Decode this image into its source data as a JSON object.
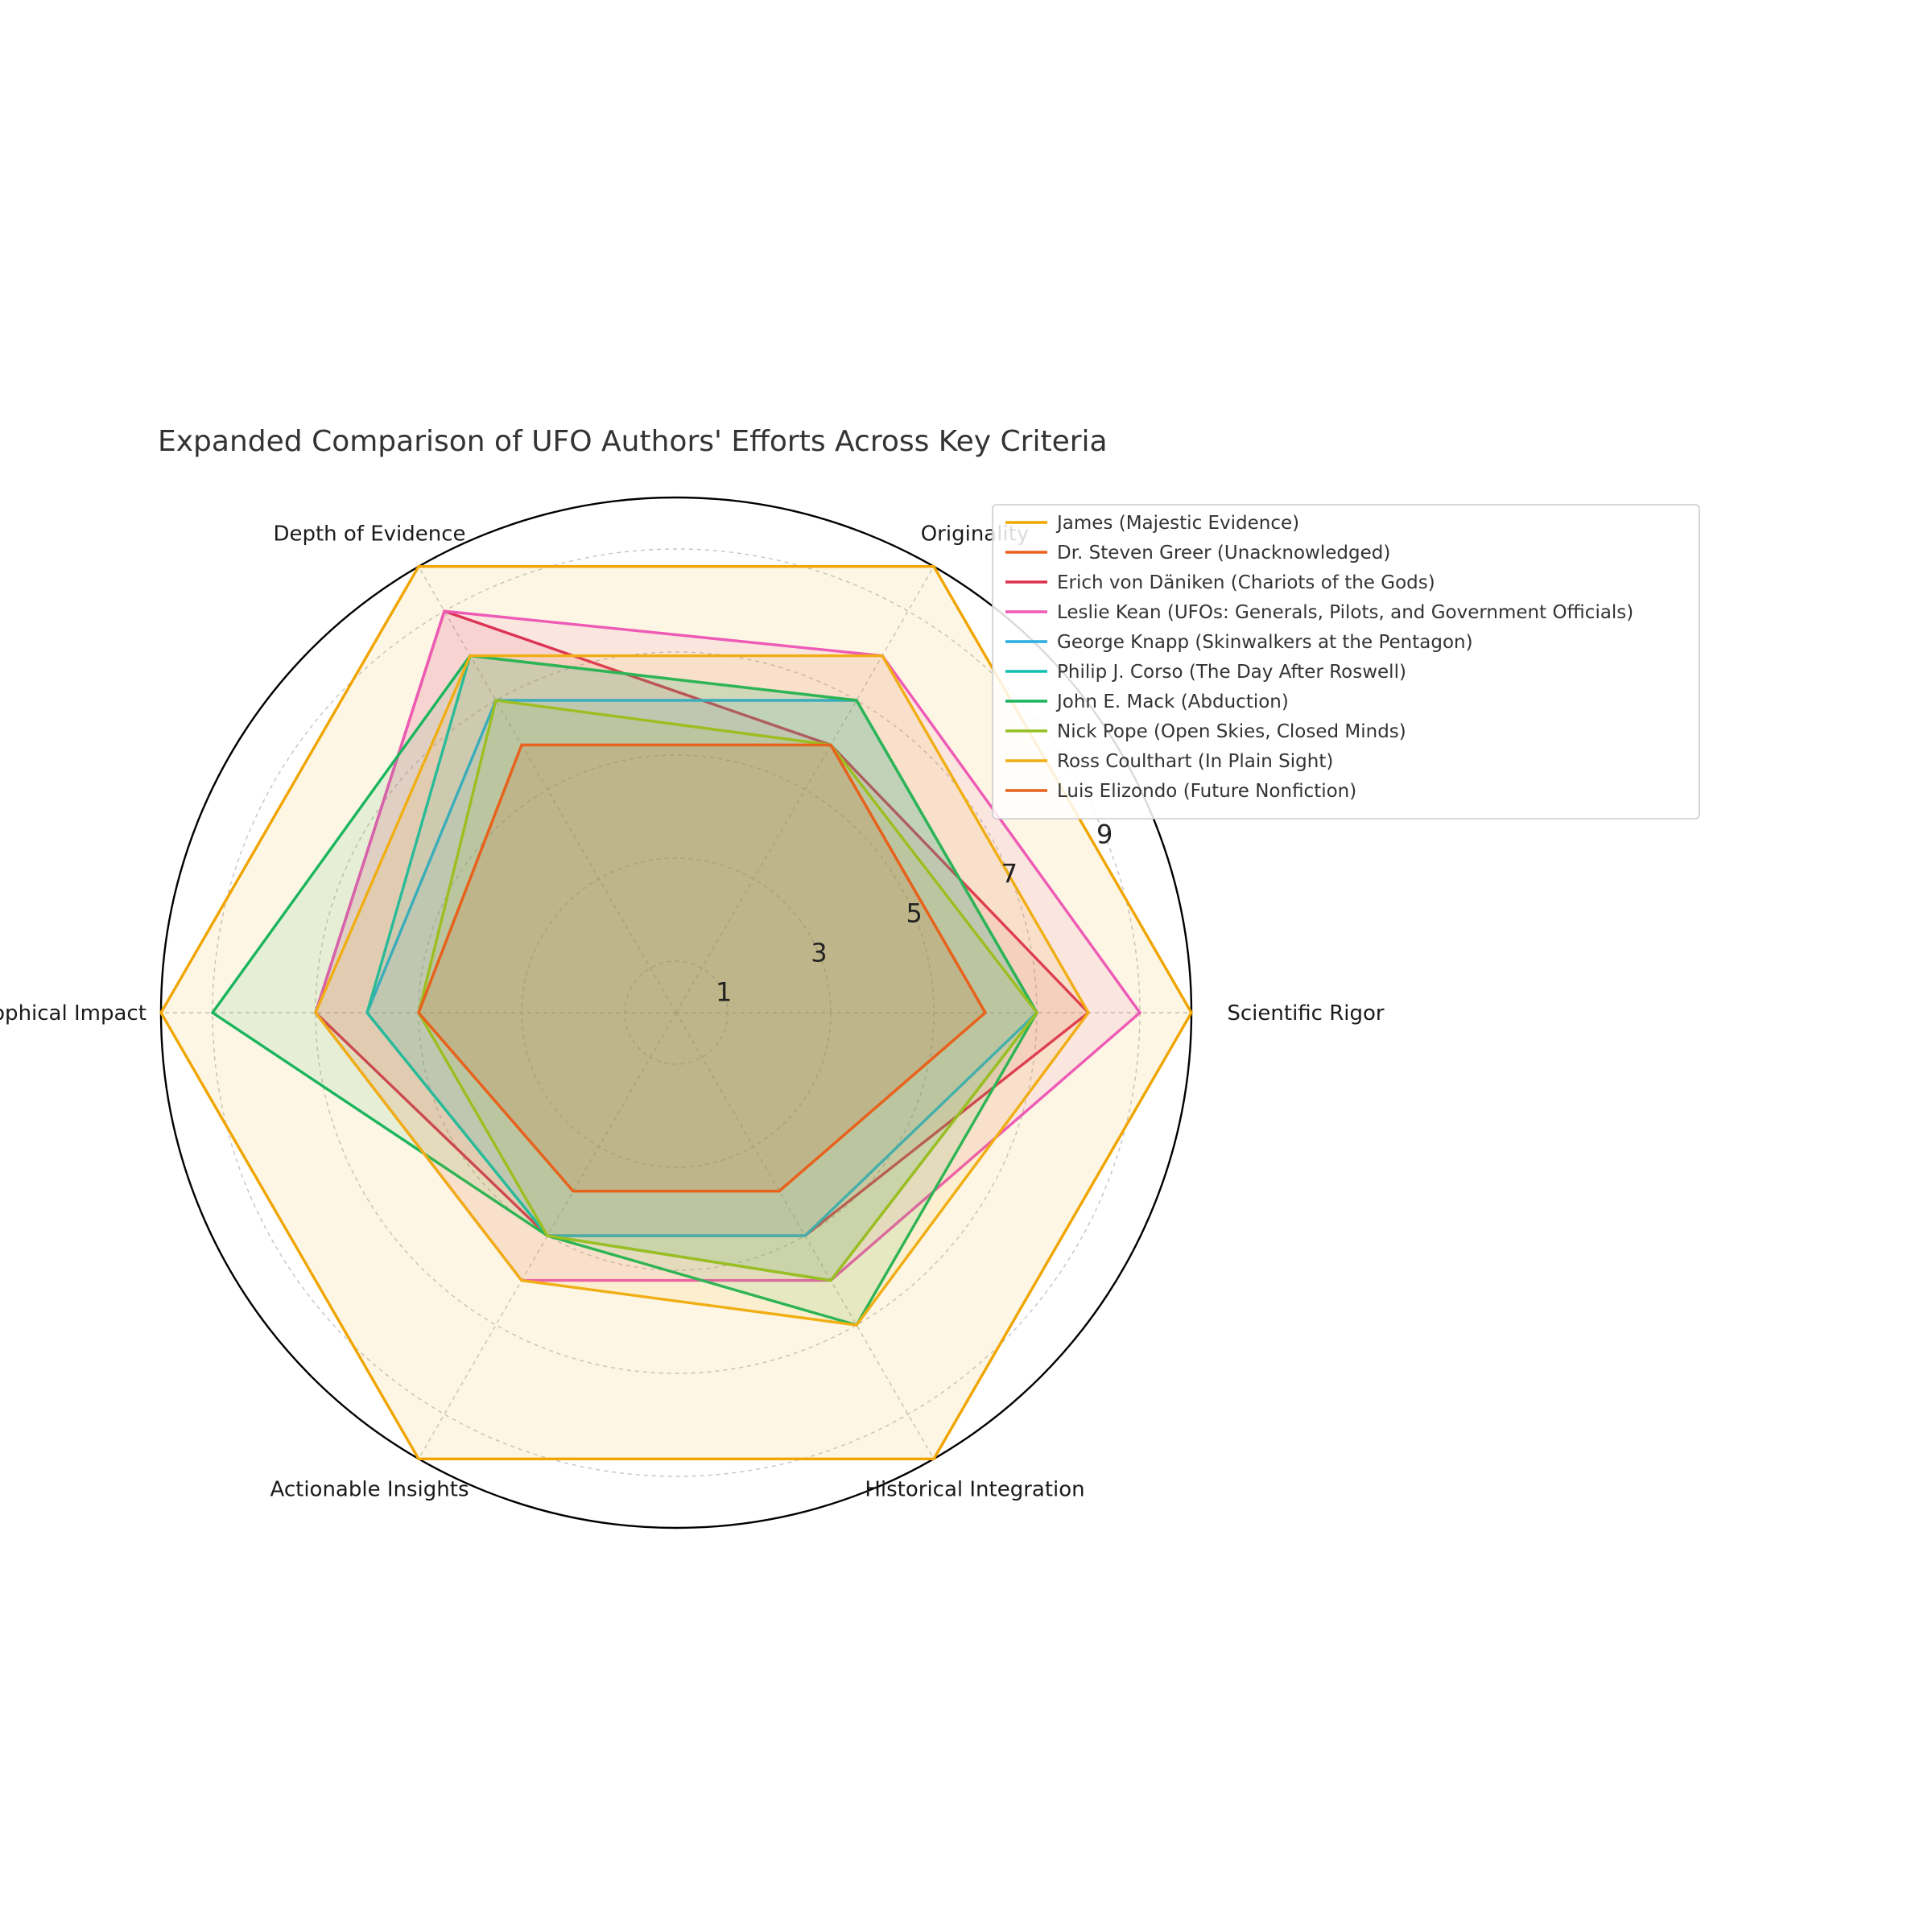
{
  "chart_data": {
    "type": "radar",
    "title": "Expanded Comparison of UFO Authors' Efforts Across Key Criteria",
    "axes": [
      "Scientific Rigor",
      "Originality",
      "Depth of Evidence",
      "Philosophical Impact",
      "Actionable Insights",
      "Historical Integration"
    ],
    "rlim": [
      0,
      10
    ],
    "rticks": [
      1,
      3,
      5,
      7,
      9
    ],
    "rtick_labels": [
      "1",
      "3",
      "5",
      "7",
      "9"
    ],
    "grid": true,
    "legend_position": "upper right, outside",
    "series": [
      {
        "name": "James (Majestic Evidence)",
        "color": "#F0A500",
        "values": [
          10,
          10,
          10,
          10,
          10,
          10
        ]
      },
      {
        "name": "Dr. Steven Greer (Unacknowledged)",
        "color": "#E8601C",
        "values": [
          6,
          6,
          6,
          5,
          4,
          4
        ]
      },
      {
        "name": "Erich von Däniken (Chariots of the Gods)",
        "color": "#DC2F4B",
        "values": [
          8,
          6,
          9,
          7,
          5,
          5
        ]
      },
      {
        "name": "Leslie Kean (UFOs: Generals, Pilots, and Government Officials)",
        "color": "#EE5AB5",
        "values": [
          9,
          8,
          9,
          7,
          6,
          6
        ]
      },
      {
        "name": "George Knapp (Skinwalkers at the Pentagon)",
        "color": "#2BACE2",
        "values": [
          7,
          7,
          7,
          6,
          5,
          5
        ]
      },
      {
        "name": "Philip J. Corso (The Day After Roswell)",
        "color": "#12BFB0",
        "values": [
          7,
          7,
          8,
          6,
          5,
          6
        ]
      },
      {
        "name": "John E. Mack (Abduction)",
        "color": "#1AB55C",
        "values": [
          7,
          7,
          8,
          9,
          5,
          7
        ]
      },
      {
        "name": "Nick Pope (Open Skies, Closed Minds)",
        "color": "#93C021",
        "values": [
          7,
          6,
          7,
          5,
          5,
          6
        ]
      },
      {
        "name": "Ross Coulthart (In Plain Sight)",
        "color": "#F0AE14",
        "values": [
          8,
          8,
          8,
          7,
          6,
          7
        ]
      },
      {
        "name": "Luis Elizondo (Future Nonfiction)",
        "color": "#E8621C",
        "values": [
          6,
          6,
          6,
          5,
          4,
          4
        ]
      }
    ]
  }
}
